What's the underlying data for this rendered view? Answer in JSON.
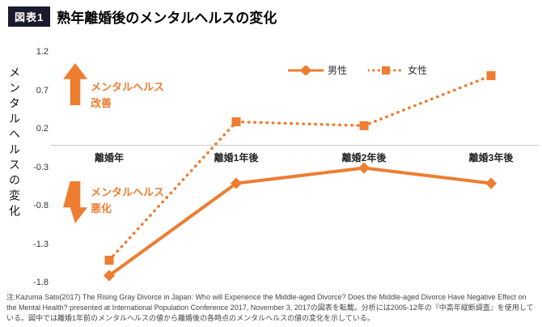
{
  "header": {
    "badge": "図表1",
    "title": "熟年離婚後のメンタルヘルスの変化"
  },
  "chart_data": {
    "type": "line",
    "categories": [
      "離婚年",
      "離婚1年後",
      "離婚2年後",
      "離婚3年後"
    ],
    "series": [
      {
        "name": "男性",
        "marker": "diamond",
        "style": "solid",
        "values": [
          -1.7,
          -0.5,
          -0.3,
          -0.5
        ]
      },
      {
        "name": "女性",
        "marker": "square",
        "style": "dotted",
        "values": [
          -1.5,
          0.3,
          0.25,
          0.9
        ]
      }
    ],
    "ylabel": "メンタルヘルスの変化",
    "yticks": [
      1.2,
      0.7,
      0.2,
      -0.3,
      -0.8,
      -1.3,
      -1.8
    ],
    "ylim": [
      -1.8,
      1.2
    ],
    "grid": "zero-line-only",
    "legend_position": "top-center",
    "accent_color": "#ed7d31"
  },
  "annotations": {
    "improve_line1": "メンタルヘルス",
    "improve_line2": "改善",
    "worsen_line1": "メンタルヘルス",
    "worsen_line2": "悪化"
  },
  "footnote": "注:Kazuma Sato(2017) The Rising Gray Divorce in Japan: Who will Experience the Middle-aged Divorce? Does the Middle-aged Divorce Have Negative Effect on the Mental Health? presented at International Population Conference 2017, November 3, 2017の図表を転載。分析には2005-12年の『中高年縦断調査』を使用している。図中では離婚1年前のメンタルヘルスの値から離婚後の各時点のメンタルヘルスの値の変化を示している。"
}
